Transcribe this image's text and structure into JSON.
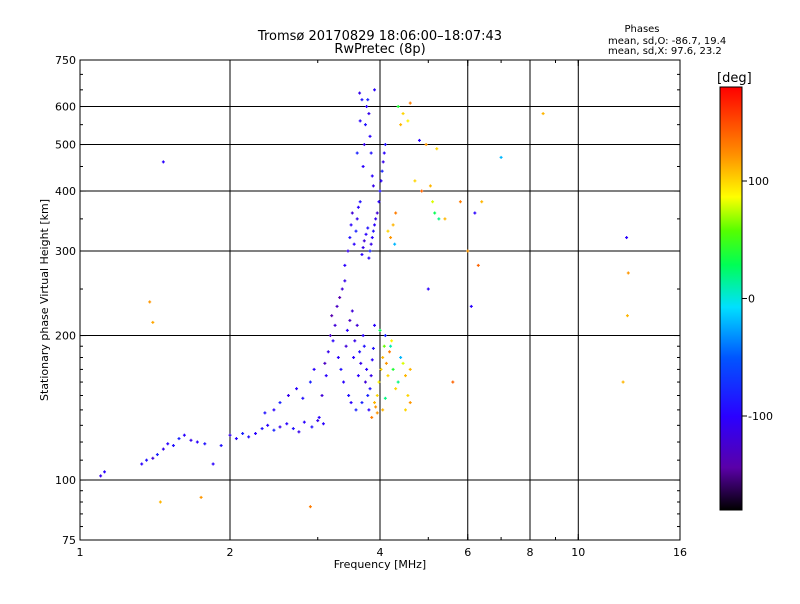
{
  "chart_data": {
    "type": "scatter",
    "title": "Tromsø 20170829 18:06:00–18:07:43",
    "subtitle": "RwPretec (8p)",
    "stats": {
      "title": "Phases",
      "line_o": "mean, sd,O: -86.7, 19.4",
      "line_x": "mean, sd,X:  97.6, 23.2"
    },
    "xlabel": "Frequency [MHz]",
    "ylabel": "Stationary phase Virtual Height [km]",
    "x_scale": "log",
    "y_scale": "log",
    "xlim": [
      1,
      16
    ],
    "ylim": [
      75,
      750
    ],
    "x_ticks": [
      {
        "value": 1,
        "label": "1"
      },
      {
        "value": 2,
        "label": "2"
      },
      {
        "value": 4,
        "label": "4"
      },
      {
        "value": 6,
        "label": "6"
      },
      {
        "value": 8,
        "label": "8"
      },
      {
        "value": 10,
        "label": "10"
      },
      {
        "value": 16,
        "label": "16"
      }
    ],
    "x_gridlines": [
      2,
      4,
      6,
      8,
      10
    ],
    "y_ticks": [
      {
        "value": 75,
        "label": "75"
      },
      {
        "value": 100,
        "label": "100"
      },
      {
        "value": 200,
        "label": "200"
      },
      {
        "value": 300,
        "label": "300"
      },
      {
        "value": 400,
        "label": "400"
      },
      {
        "value": 500,
        "label": "500"
      },
      {
        "value": 600,
        "label": "600"
      },
      {
        "value": 750,
        "label": "750"
      }
    ],
    "y_gridlines": [
      100,
      200,
      300,
      400,
      500,
      600
    ],
    "grid": true,
    "colorbar": {
      "label": "[deg]",
      "range": [
        -180,
        180
      ],
      "tick_labels": [
        {
          "value": 100,
          "label": "100"
        },
        {
          "value": 0,
          "label": "0"
        },
        {
          "value": -100,
          "label": "-100"
        }
      ]
    },
    "points": [
      [
        1.1,
        102,
        -110
      ],
      [
        1.12,
        104,
        -100
      ],
      [
        1.45,
        90,
        110
      ],
      [
        1.75,
        92,
        120
      ],
      [
        2.9,
        88,
        130
      ],
      [
        1.38,
        235,
        120
      ],
      [
        1.4,
        213,
        115
      ],
      [
        1.47,
        460,
        -100
      ],
      [
        1.33,
        108,
        -100
      ],
      [
        1.36,
        110,
        -90
      ],
      [
        1.4,
        111,
        -120
      ],
      [
        1.43,
        113,
        -80
      ],
      [
        1.47,
        116,
        -110
      ],
      [
        1.5,
        119,
        -100
      ],
      [
        1.54,
        118,
        -90
      ],
      [
        1.58,
        122,
        -80
      ],
      [
        1.62,
        124,
        -100
      ],
      [
        1.67,
        121,
        -110
      ],
      [
        1.72,
        120,
        -100
      ],
      [
        1.78,
        119,
        -90
      ],
      [
        1.85,
        108,
        -100
      ],
      [
        1.92,
        118,
        -90
      ],
      [
        2.0,
        124,
        -110
      ],
      [
        2.06,
        122,
        -100
      ],
      [
        2.12,
        125,
        -80
      ],
      [
        2.18,
        123,
        -90
      ],
      [
        2.25,
        125,
        -100
      ],
      [
        2.32,
        128,
        -90
      ],
      [
        2.38,
        130,
        -100
      ],
      [
        2.45,
        127,
        -80
      ],
      [
        2.52,
        129,
        -110
      ],
      [
        2.6,
        131,
        -100
      ],
      [
        2.68,
        128,
        -90
      ],
      [
        2.75,
        126,
        -110
      ],
      [
        2.82,
        132,
        -100
      ],
      [
        2.92,
        129,
        -90
      ],
      [
        3.0,
        133,
        -110
      ],
      [
        3.08,
        131,
        -100
      ],
      [
        2.35,
        138,
        -90
      ],
      [
        2.45,
        140,
        -100
      ],
      [
        2.52,
        145,
        -80
      ],
      [
        2.62,
        150,
        -110
      ],
      [
        2.72,
        155,
        -100
      ],
      [
        2.8,
        148,
        -90
      ],
      [
        2.9,
        160,
        -80
      ],
      [
        2.95,
        170,
        -100
      ],
      [
        3.02,
        135,
        -100
      ],
      [
        3.06,
        150,
        -120
      ],
      [
        3.1,
        175,
        -130
      ],
      [
        3.12,
        165,
        -100
      ],
      [
        3.15,
        185,
        -110
      ],
      [
        3.18,
        200,
        -130
      ],
      [
        3.2,
        220,
        -140
      ],
      [
        3.22,
        195,
        -100
      ],
      [
        3.25,
        210,
        -120
      ],
      [
        3.28,
        230,
        -130
      ],
      [
        3.3,
        180,
        -100
      ],
      [
        3.32,
        240,
        -140
      ],
      [
        3.34,
        170,
        -90
      ],
      [
        3.36,
        250,
        -120
      ],
      [
        3.38,
        160,
        -100
      ],
      [
        3.4,
        260,
        -110
      ],
      [
        3.42,
        190,
        -120
      ],
      [
        3.44,
        205,
        -100
      ],
      [
        3.46,
        150,
        -90
      ],
      [
        3.48,
        215,
        -130
      ],
      [
        3.5,
        145,
        -100
      ],
      [
        3.52,
        225,
        -120
      ],
      [
        3.54,
        180,
        -100
      ],
      [
        3.56,
        195,
        -110
      ],
      [
        3.58,
        140,
        -80
      ],
      [
        3.6,
        210,
        -120
      ],
      [
        3.62,
        165,
        -100
      ],
      [
        3.64,
        185,
        -90
      ],
      [
        3.66,
        175,
        -110
      ],
      [
        3.68,
        145,
        -80
      ],
      [
        3.7,
        200,
        -100
      ],
      [
        3.72,
        190,
        -90
      ],
      [
        3.74,
        160,
        -120
      ],
      [
        3.76,
        170,
        -100
      ],
      [
        3.78,
        150,
        -80
      ],
      [
        3.8,
        140,
        -100
      ],
      [
        3.82,
        155,
        -90
      ],
      [
        3.84,
        165,
        -110
      ],
      [
        3.86,
        178,
        -100
      ],
      [
        3.88,
        188,
        -90
      ],
      [
        3.9,
        145,
        110
      ],
      [
        3.92,
        142,
        120
      ],
      [
        3.95,
        150,
        100
      ],
      [
        3.98,
        160,
        90
      ],
      [
        4.02,
        170,
        100
      ],
      [
        4.05,
        180,
        110
      ],
      [
        4.08,
        190,
        60
      ],
      [
        4.12,
        175,
        120
      ],
      [
        4.15,
        165,
        100
      ],
      [
        4.18,
        185,
        130
      ],
      [
        4.22,
        195,
        90
      ],
      [
        4.25,
        170,
        40
      ],
      [
        4.3,
        155,
        100
      ],
      [
        4.35,
        160,
        20
      ],
      [
        4.4,
        180,
        -20
      ],
      [
        4.45,
        175,
        80
      ],
      [
        4.5,
        165,
        110
      ],
      [
        4.55,
        150,
        100
      ],
      [
        3.85,
        135,
        130
      ],
      [
        3.95,
        138,
        120
      ],
      [
        4.05,
        140,
        110
      ],
      [
        4.1,
        148,
        20
      ],
      [
        3.9,
        210,
        -100
      ],
      [
        4.0,
        205,
        30
      ],
      [
        4.1,
        200,
        -80
      ],
      [
        4.2,
        190,
        10
      ],
      [
        4.6,
        170,
        110
      ],
      [
        4.6,
        145,
        120
      ],
      [
        4.5,
        140,
        100
      ],
      [
        3.4,
        280,
        -100
      ],
      [
        3.45,
        300,
        -110
      ],
      [
        3.48,
        320,
        -90
      ],
      [
        3.5,
        340,
        -100
      ],
      [
        3.52,
        360,
        -120
      ],
      [
        3.55,
        310,
        -100
      ],
      [
        3.58,
        330,
        -80
      ],
      [
        3.6,
        350,
        -110
      ],
      [
        3.62,
        370,
        -100
      ],
      [
        3.65,
        380,
        -90
      ],
      [
        3.68,
        295,
        -100
      ],
      [
        3.7,
        305,
        -110
      ],
      [
        3.72,
        315,
        -120
      ],
      [
        3.75,
        325,
        -100
      ],
      [
        3.78,
        335,
        -90
      ],
      [
        3.8,
        290,
        -100
      ],
      [
        3.82,
        300,
        -80
      ],
      [
        3.84,
        310,
        -110
      ],
      [
        3.86,
        320,
        -100
      ],
      [
        3.88,
        330,
        -90
      ],
      [
        3.9,
        340,
        -100
      ],
      [
        3.92,
        350,
        -110
      ],
      [
        3.95,
        360,
        -120
      ],
      [
        3.98,
        380,
        -100
      ],
      [
        4.0,
        400,
        -90
      ],
      [
        4.02,
        420,
        -100
      ],
      [
        4.04,
        440,
        -80
      ],
      [
        4.06,
        460,
        -110
      ],
      [
        4.08,
        480,
        -100
      ],
      [
        4.1,
        500,
        -90
      ],
      [
        3.7,
        450,
        -100
      ],
      [
        3.72,
        500,
        -110
      ],
      [
        3.74,
        550,
        -90
      ],
      [
        3.76,
        600,
        -100
      ],
      [
        3.78,
        620,
        -80
      ],
      [
        3.8,
        580,
        -110
      ],
      [
        3.82,
        520,
        -100
      ],
      [
        3.84,
        480,
        -90
      ],
      [
        3.86,
        430,
        -100
      ],
      [
        3.88,
        410,
        -110
      ],
      [
        3.6,
        480,
        -80
      ],
      [
        3.65,
        560,
        -100
      ],
      [
        3.68,
        620,
        -90
      ],
      [
        3.64,
        640,
        -110
      ],
      [
        3.9,
        650,
        -100
      ],
      [
        4.2,
        320,
        120
      ],
      [
        4.25,
        340,
        110
      ],
      [
        4.3,
        360,
        130
      ],
      [
        4.15,
        330,
        100
      ],
      [
        4.28,
        310,
        -20
      ],
      [
        4.4,
        550,
        110
      ],
      [
        4.45,
        580,
        100
      ],
      [
        4.55,
        560,
        90
      ],
      [
        4.35,
        600,
        40
      ],
      [
        4.6,
        610,
        130
      ],
      [
        4.8,
        510,
        -100
      ],
      [
        4.95,
        500,
        120
      ],
      [
        5.1,
        380,
        80
      ],
      [
        5.15,
        360,
        30
      ],
      [
        5.25,
        350,
        20
      ],
      [
        5.05,
        410,
        110
      ],
      [
        4.7,
        420,
        100
      ],
      [
        4.85,
        400,
        140
      ],
      [
        5.4,
        350,
        110
      ],
      [
        5.2,
        490,
        100
      ],
      [
        5.0,
        250,
        -100
      ],
      [
        5.8,
        380,
        130
      ],
      [
        6.0,
        300,
        120
      ],
      [
        6.2,
        360,
        -100
      ],
      [
        6.4,
        380,
        110
      ],
      [
        6.3,
        280,
        140
      ],
      [
        6.1,
        230,
        -100
      ],
      [
        7.0,
        470,
        -20
      ],
      [
        5.6,
        160,
        140
      ],
      [
        8.5,
        580,
        110
      ],
      [
        12.5,
        320,
        -100
      ],
      [
        12.6,
        270,
        120
      ],
      [
        12.55,
        220,
        110
      ],
      [
        12.3,
        160,
        110
      ]
    ]
  }
}
